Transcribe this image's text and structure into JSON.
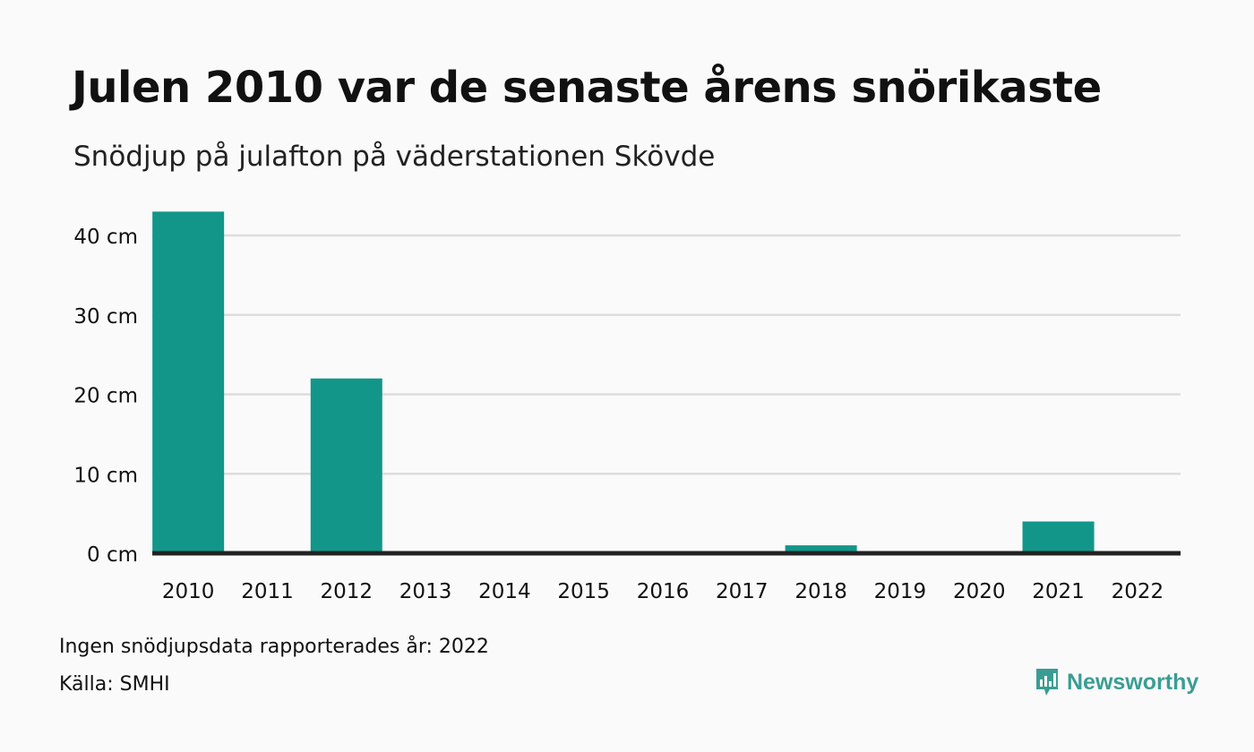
{
  "title": "Julen 2010 var de senaste årens snörikaste",
  "subtitle": "Snödjup på julafton på väderstationen Skövde",
  "notes": {
    "missing": "Ingen snödjupsdata rapporterades år: 2022",
    "source": "Källa: SMHI"
  },
  "brand": {
    "name": "Newsworthy",
    "icon": "newsworthy-logo-icon"
  },
  "colors": {
    "bar": "#13968a",
    "grid": "#dddddd",
    "baseline": "#222222",
    "brand": "#3a9d94"
  },
  "chart_data": {
    "type": "bar",
    "categories": [
      "2010",
      "2011",
      "2012",
      "2013",
      "2014",
      "2015",
      "2016",
      "2017",
      "2018",
      "2019",
      "2020",
      "2021",
      "2022"
    ],
    "values": [
      43,
      0,
      22,
      0,
      0,
      0,
      0,
      0,
      1,
      0,
      0,
      4,
      null
    ],
    "ylim": [
      0,
      40
    ],
    "yticks": [
      0,
      10,
      20,
      30,
      40
    ],
    "ytick_labels": [
      "0 cm",
      "10 cm",
      "20 cm",
      "30 cm",
      "40 cm"
    ],
    "unit": "cm",
    "grid": true,
    "legend": "none"
  }
}
